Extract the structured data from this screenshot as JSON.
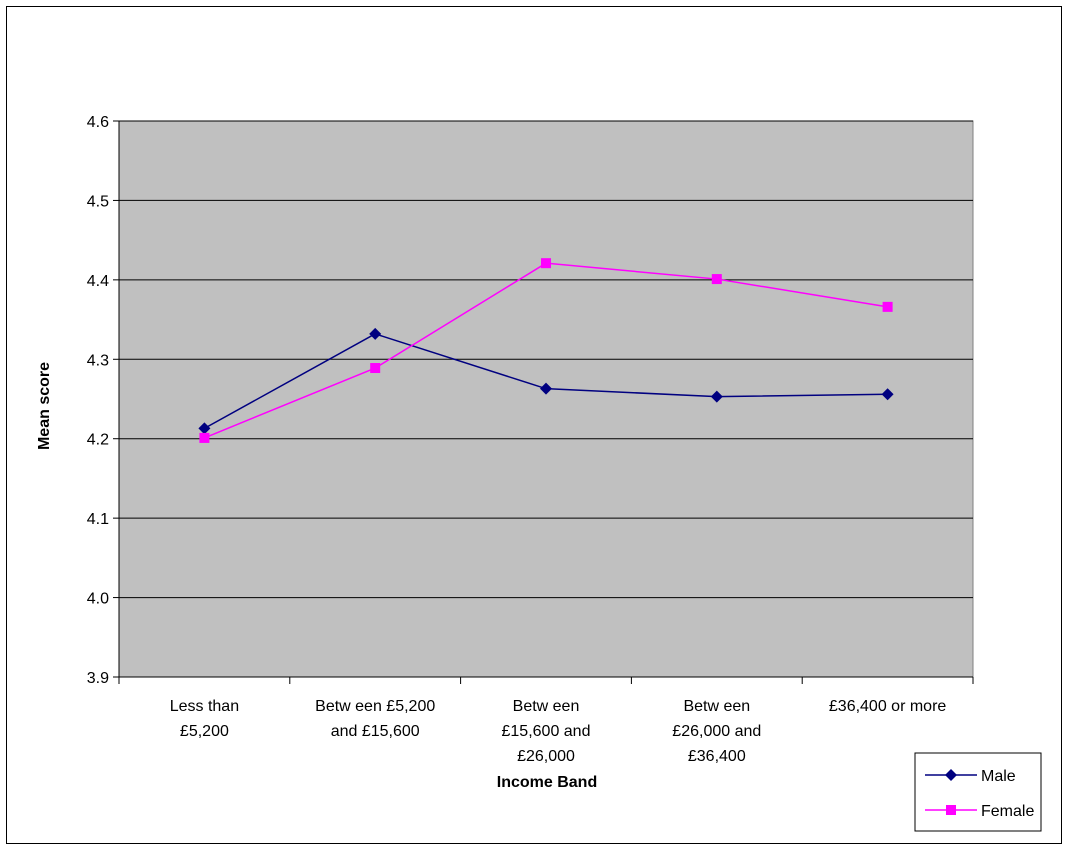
{
  "chart_data": {
    "type": "line",
    "title": "",
    "xlabel": "Income Band",
    "ylabel": "Mean score",
    "ylim": [
      3.9,
      4.6
    ],
    "yticks": [
      "3.9",
      "4.0",
      "4.1",
      "4.2",
      "4.3",
      "4.4",
      "4.5",
      "4.6"
    ],
    "grid": true,
    "legend_position": "bottom-right",
    "categories": [
      [
        "Less than",
        "£5,200"
      ],
      [
        "Betw een £5,200",
        "and £15,600"
      ],
      [
        "Betw een",
        "£15,600 and",
        "£26,000"
      ],
      [
        "Betw een",
        "£26,000 and",
        "£36,400"
      ],
      [
        "£36,400 or more"
      ]
    ],
    "series": [
      {
        "name": "Male",
        "color": "#000080",
        "marker": "diamond",
        "values": [
          4.213,
          4.332,
          4.263,
          4.253,
          4.256
        ]
      },
      {
        "name": "Female",
        "color": "#FF00FF",
        "marker": "square",
        "values": [
          4.201,
          4.289,
          4.421,
          4.401,
          4.366
        ]
      }
    ],
    "plot_background": "#C0C0C0"
  }
}
